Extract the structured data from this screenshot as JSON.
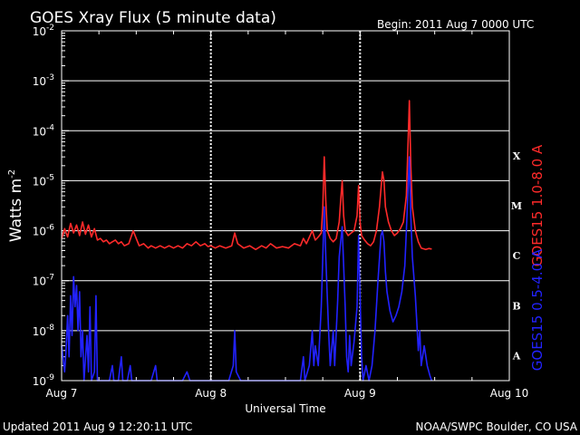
{
  "header": {
    "title": "GOES Xray Flux (5 minute data)",
    "begin": "Begin:  2011 Aug 7 0000 UTC"
  },
  "footer": {
    "updated": "Updated 2011 Aug  9 12:20:11 UTC",
    "credit": "NOAA/SWPC Boulder, CO USA"
  },
  "chart_data": {
    "type": "line",
    "title": "GOES Xray Flux (5 minute data)",
    "xlabel": "Universal Time",
    "ylabel": "Watts m",
    "ylabel_sup": "-2",
    "yscale": "log",
    "ylim": [
      1e-09,
      0.01
    ],
    "xlim": [
      0,
      3
    ],
    "x_units": "days since 2011 Aug 7 00:00 UTC",
    "x_tick_labels": [
      {
        "x": 0,
        "label": "Aug 7"
      },
      {
        "x": 1,
        "label": "Aug 8"
      },
      {
        "x": 2,
        "label": "Aug 9"
      },
      {
        "x": 3,
        "label": "Aug 10"
      }
    ],
    "y_ticks": [
      {
        "exp": -2,
        "label": "10",
        "sup": "-2"
      },
      {
        "exp": -3,
        "label": "10",
        "sup": "-3"
      },
      {
        "exp": -4,
        "label": "10",
        "sup": "-4"
      },
      {
        "exp": -5,
        "label": "10",
        "sup": "-5"
      },
      {
        "exp": -6,
        "label": "10",
        "sup": "-6"
      },
      {
        "exp": -7,
        "label": "10",
        "sup": "-7"
      },
      {
        "exp": -8,
        "label": "10",
        "sup": "-8"
      },
      {
        "exp": -9,
        "label": "10",
        "sup": "-9"
      }
    ],
    "flare_classes": [
      {
        "label": "X",
        "exp": -4
      },
      {
        "label": "M",
        "exp": -5
      },
      {
        "label": "C",
        "exp": -6
      },
      {
        "label": "B",
        "exp": -7
      },
      {
        "label": "A",
        "exp": -8
      }
    ],
    "grid": "horizontal at each decade",
    "series": [
      {
        "name": "GOES15 1.0-8.0 A",
        "color": "#ff2a2a",
        "points": [
          [
            0.0,
            7e-07
          ],
          [
            0.02,
            1.1e-06
          ],
          [
            0.04,
            7.5e-07
          ],
          [
            0.06,
            1.4e-06
          ],
          [
            0.08,
            9e-07
          ],
          [
            0.1,
            1.3e-06
          ],
          [
            0.12,
            8e-07
          ],
          [
            0.14,
            1.5e-06
          ],
          [
            0.16,
            8.5e-07
          ],
          [
            0.18,
            1.3e-06
          ],
          [
            0.2,
            7.5e-07
          ],
          [
            0.22,
            1.1e-06
          ],
          [
            0.24,
            6.5e-07
          ],
          [
            0.26,
            7e-07
          ],
          [
            0.28,
            6e-07
          ],
          [
            0.3,
            6.5e-07
          ],
          [
            0.32,
            5.5e-07
          ],
          [
            0.34,
            6e-07
          ],
          [
            0.36,
            6.5e-07
          ],
          [
            0.38,
            5.5e-07
          ],
          [
            0.4,
            6e-07
          ],
          [
            0.42,
            5e-07
          ],
          [
            0.45,
            5.5e-07
          ],
          [
            0.48,
            1e-06
          ],
          [
            0.5,
            7e-07
          ],
          [
            0.52,
            5e-07
          ],
          [
            0.55,
            5.5e-07
          ],
          [
            0.58,
            4.5e-07
          ],
          [
            0.6,
            5e-07
          ],
          [
            0.63,
            4.5e-07
          ],
          [
            0.66,
            5e-07
          ],
          [
            0.69,
            4.5e-07
          ],
          [
            0.72,
            5e-07
          ],
          [
            0.75,
            4.5e-07
          ],
          [
            0.78,
            5e-07
          ],
          [
            0.81,
            4.5e-07
          ],
          [
            0.84,
            5.5e-07
          ],
          [
            0.87,
            5e-07
          ],
          [
            0.9,
            6e-07
          ],
          [
            0.93,
            5e-07
          ],
          [
            0.96,
            5.5e-07
          ],
          [
            0.98,
            4.8e-07
          ],
          [
            1.0,
            5e-07
          ],
          [
            1.03,
            4.5e-07
          ],
          [
            1.06,
            5e-07
          ],
          [
            1.1,
            4.5e-07
          ],
          [
            1.14,
            5e-07
          ],
          [
            1.16,
            9e-07
          ],
          [
            1.18,
            5.5e-07
          ],
          [
            1.22,
            4.5e-07
          ],
          [
            1.26,
            5e-07
          ],
          [
            1.3,
            4.2e-07
          ],
          [
            1.34,
            5e-07
          ],
          [
            1.37,
            4.5e-07
          ],
          [
            1.4,
            5.5e-07
          ],
          [
            1.44,
            4.5e-07
          ],
          [
            1.48,
            4.8e-07
          ],
          [
            1.52,
            4.5e-07
          ],
          [
            1.56,
            5.5e-07
          ],
          [
            1.6,
            5e-07
          ],
          [
            1.62,
            7e-07
          ],
          [
            1.64,
            5.5e-07
          ],
          [
            1.68,
            1e-06
          ],
          [
            1.7,
            6.5e-07
          ],
          [
            1.72,
            7.5e-07
          ],
          [
            1.74,
            9e-07
          ],
          [
            1.75,
            3e-06
          ],
          [
            1.76,
            3e-05
          ],
          [
            1.77,
            4e-06
          ],
          [
            1.78,
            1e-06
          ],
          [
            1.8,
            7e-07
          ],
          [
            1.82,
            6e-07
          ],
          [
            1.84,
            7e-07
          ],
          [
            1.86,
            1.5e-06
          ],
          [
            1.87,
            4e-06
          ],
          [
            1.88,
            1e-05
          ],
          [
            1.89,
            2e-06
          ],
          [
            1.9,
            1e-06
          ],
          [
            1.92,
            8e-07
          ],
          [
            1.94,
            9e-07
          ],
          [
            1.96,
            1e-06
          ],
          [
            1.98,
            2e-06
          ],
          [
            1.99,
            8e-06
          ],
          [
            2.0,
            1.5e-06
          ],
          [
            2.01,
            8e-07
          ],
          [
            2.03,
            6.5e-07
          ],
          [
            2.05,
            5.5e-07
          ],
          [
            2.07,
            5e-07
          ],
          [
            2.09,
            6e-07
          ],
          [
            2.11,
            1e-06
          ],
          [
            2.13,
            3e-06
          ],
          [
            2.15,
            1.5e-05
          ],
          [
            2.16,
            1e-05
          ],
          [
            2.17,
            3e-06
          ],
          [
            2.19,
            1.5e-06
          ],
          [
            2.21,
            1e-06
          ],
          [
            2.23,
            8e-07
          ],
          [
            2.25,
            9e-07
          ],
          [
            2.27,
            1.1e-06
          ],
          [
            2.29,
            1.5e-06
          ],
          [
            2.31,
            5e-06
          ],
          [
            2.32,
            4e-05
          ],
          [
            2.33,
            0.0004
          ],
          [
            2.34,
            2e-05
          ],
          [
            2.35,
            3e-06
          ],
          [
            2.37,
            1e-06
          ],
          [
            2.39,
            6e-07
          ],
          [
            2.41,
            4.5e-07
          ],
          [
            2.44,
            4.2e-07
          ],
          [
            2.46,
            4.4e-07
          ],
          [
            2.48,
            4.3e-07
          ]
        ]
      },
      {
        "name": "GOES15 0.5-4.0 A",
        "color": "#2222ff",
        "points": [
          [
            0.0,
            5e-09
          ],
          [
            0.02,
            1.5e-09
          ],
          [
            0.03,
            4e-09
          ],
          [
            0.04,
            2e-08
          ],
          [
            0.05,
            3e-09
          ],
          [
            0.06,
            5e-08
          ],
          [
            0.07,
            8e-09
          ],
          [
            0.08,
            1.2e-07
          ],
          [
            0.09,
            3e-08
          ],
          [
            0.1,
            8e-08
          ],
          [
            0.11,
            1e-08
          ],
          [
            0.12,
            6e-08
          ],
          [
            0.13,
            3e-09
          ],
          [
            0.14,
            1e-08
          ],
          [
            0.15,
            1e-09
          ],
          [
            0.17,
            8e-09
          ],
          [
            0.18,
            1.5e-09
          ],
          [
            0.19,
            3e-08
          ],
          [
            0.2,
            1e-09
          ],
          [
            0.22,
            1.5e-09
          ],
          [
            0.23,
            5e-08
          ],
          [
            0.24,
            1e-09
          ],
          [
            0.26,
            1e-09
          ],
          [
            0.28,
            1e-09
          ],
          [
            0.3,
            1e-09
          ],
          [
            0.32,
            1e-09
          ],
          [
            0.34,
            2e-09
          ],
          [
            0.35,
            1e-09
          ],
          [
            0.38,
            1e-09
          ],
          [
            0.4,
            3e-09
          ],
          [
            0.41,
            1e-09
          ],
          [
            0.44,
            1e-09
          ],
          [
            0.46,
            2e-09
          ],
          [
            0.47,
            1e-09
          ],
          [
            0.5,
            1e-09
          ],
          [
            0.53,
            1e-09
          ],
          [
            0.56,
            1e-09
          ],
          [
            0.6,
            1e-09
          ],
          [
            0.63,
            2e-09
          ],
          [
            0.64,
            1e-09
          ],
          [
            0.68,
            1e-09
          ],
          [
            0.71,
            1e-09
          ],
          [
            0.74,
            1e-09
          ],
          [
            0.78,
            1e-09
          ],
          [
            0.81,
            1e-09
          ],
          [
            0.84,
            1.5e-09
          ],
          [
            0.86,
            1e-09
          ],
          [
            0.9,
            1e-09
          ],
          [
            0.93,
            1e-09
          ],
          [
            0.96,
            1e-09
          ],
          [
            1.0,
            1e-09
          ],
          [
            1.04,
            1e-09
          ],
          [
            1.08,
            1e-09
          ],
          [
            1.12,
            1e-09
          ],
          [
            1.15,
            2e-09
          ],
          [
            1.16,
            1e-08
          ],
          [
            1.17,
            1.5e-09
          ],
          [
            1.2,
            1e-09
          ],
          [
            1.24,
            1e-09
          ],
          [
            1.28,
            1e-09
          ],
          [
            1.32,
            1e-09
          ],
          [
            1.36,
            1e-09
          ],
          [
            1.4,
            1e-09
          ],
          [
            1.44,
            1e-09
          ],
          [
            1.48,
            1e-09
          ],
          [
            1.52,
            1e-09
          ],
          [
            1.56,
            1e-09
          ],
          [
            1.6,
            1e-09
          ],
          [
            1.62,
            3e-09
          ],
          [
            1.63,
            1e-09
          ],
          [
            1.66,
            2e-09
          ],
          [
            1.68,
            1e-08
          ],
          [
            1.69,
            2e-09
          ],
          [
            1.7,
            5e-09
          ],
          [
            1.72,
            2e-09
          ],
          [
            1.74,
            3e-08
          ],
          [
            1.75,
            3e-07
          ],
          [
            1.76,
            3e-06
          ],
          [
            1.77,
            3e-07
          ],
          [
            1.78,
            5e-08
          ],
          [
            1.79,
            8e-09
          ],
          [
            1.8,
            2e-09
          ],
          [
            1.82,
            1e-08
          ],
          [
            1.83,
            2e-09
          ],
          [
            1.85,
            4e-08
          ],
          [
            1.86,
            3e-07
          ],
          [
            1.87,
            6e-07
          ],
          [
            1.88,
            1.2e-06
          ],
          [
            1.89,
            2e-07
          ],
          [
            1.9,
            3e-08
          ],
          [
            1.91,
            3e-09
          ],
          [
            1.92,
            1.5e-09
          ],
          [
            1.93,
            8e-09
          ],
          [
            1.94,
            2e-09
          ],
          [
            1.96,
            6e-09
          ],
          [
            1.98,
            3e-08
          ],
          [
            1.99,
            8e-07
          ],
          [
            2.0,
            5e-08
          ],
          [
            2.01,
            3e-09
          ],
          [
            2.02,
            1e-09
          ],
          [
            2.04,
            2e-09
          ],
          [
            2.06,
            1e-09
          ],
          [
            2.08,
            2e-09
          ],
          [
            2.1,
            1e-08
          ],
          [
            2.12,
            1e-07
          ],
          [
            2.14,
            8e-07
          ],
          [
            2.15,
            1e-06
          ],
          [
            2.16,
            6e-07
          ],
          [
            2.17,
            1.5e-07
          ],
          [
            2.18,
            6e-08
          ],
          [
            2.2,
            2.5e-08
          ],
          [
            2.22,
            1.5e-08
          ],
          [
            2.24,
            2e-08
          ],
          [
            2.26,
            3e-08
          ],
          [
            2.28,
            6e-08
          ],
          [
            2.3,
            2e-07
          ],
          [
            2.31,
            1e-06
          ],
          [
            2.32,
            5e-06
          ],
          [
            2.33,
            3e-05
          ],
          [
            2.34,
            2e-06
          ],
          [
            2.35,
            3e-07
          ],
          [
            2.37,
            5e-08
          ],
          [
            2.38,
            1.5e-08
          ],
          [
            2.39,
            4e-09
          ],
          [
            2.4,
            1e-08
          ],
          [
            2.41,
            2e-09
          ],
          [
            2.43,
            5e-09
          ],
          [
            2.45,
            2e-09
          ],
          [
            2.47,
            1.2e-09
          ],
          [
            2.48,
            1e-09
          ]
        ]
      }
    ],
    "secondary_labels": [
      "GOES15 1.0-8.0 A",
      "GOES15 0.5-4.0 A"
    ]
  }
}
